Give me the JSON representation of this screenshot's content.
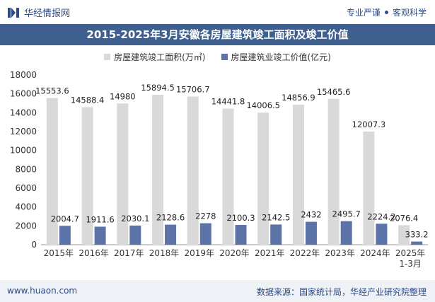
{
  "header": {
    "brand_name": "华经情报网",
    "tagline_left": "专业严谨",
    "tagline_right": "客观科学"
  },
  "footer": {
    "website": "www.huaon.com",
    "source": "数据来源：国家统计局，华经产业研究院整理"
  },
  "colors": {
    "brand": "#2b4a86",
    "title_band": "#3f5f8f",
    "series_area": "#d9d9d9",
    "series_value": "#5b73a7"
  },
  "chart_data": {
    "type": "bar",
    "title": "2015-2025年3月安徽各房屋建筑竣工面积及竣工价值",
    "categories": [
      "2015年",
      "2016年",
      "2017年",
      "2018年",
      "2019年",
      "2020年",
      "2021年",
      "2022年",
      "2023年",
      "2024年",
      "2025年\n1-3月"
    ],
    "series": [
      {
        "name": "房屋建筑竣工面积(万㎡)",
        "color": "#d9d9d9",
        "values": [
          15553.6,
          14588.4,
          14980,
          15894.5,
          15706.7,
          14441.8,
          14006.5,
          14856.9,
          15465.6,
          12007.3,
          2076.4
        ]
      },
      {
        "name": "房屋建筑业竣工价值(亿元)",
        "color": "#5b73a7",
        "values": [
          2004.7,
          1911.6,
          2030.1,
          2128.6,
          2278,
          2100.3,
          2142.5,
          2432,
          2495.7,
          2224.2,
          333.2
        ]
      }
    ],
    "ylim": [
      0,
      18000
    ],
    "yticks": [
      0,
      2000,
      4000,
      6000,
      8000,
      10000,
      12000,
      14000,
      16000,
      18000
    ],
    "legend_position": "top-center",
    "grid": false
  }
}
